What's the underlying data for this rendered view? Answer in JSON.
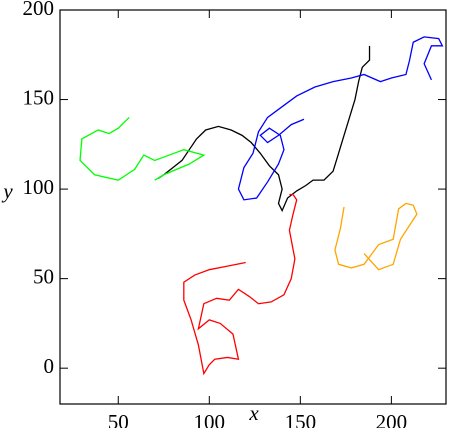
{
  "chart_data": {
    "type": "line",
    "x_label": "x",
    "y_label": "y",
    "xlim": [
      18,
      230
    ],
    "ylim": [
      -20,
      200
    ],
    "xticks": [
      50,
      100,
      150,
      200
    ],
    "yticks": [
      0,
      50,
      100,
      150,
      200
    ],
    "series": [
      {
        "name": "black",
        "color": "#000000",
        "x": [
          188,
          188,
          184,
          182,
          180,
          177,
          174,
          171,
          168,
          163,
          157,
          153,
          148,
          143,
          140,
          138,
          140,
          138,
          133,
          128,
          123,
          118,
          112,
          105,
          98,
          93,
          89,
          85,
          80,
          75,
          72
        ],
        "values": [
          180,
          172,
          168,
          160,
          150,
          140,
          130,
          120,
          110,
          105,
          105,
          102,
          99,
          95,
          88,
          92,
          100,
          108,
          113,
          120,
          126,
          130,
          133,
          135,
          133,
          128,
          122,
          116,
          112,
          108,
          106
        ]
      },
      {
        "name": "blue",
        "color": "#0000ff",
        "x": [
          222,
          218,
          222,
          228,
          226,
          218,
          212,
          210,
          208,
          200,
          194,
          185,
          178,
          168,
          158,
          148,
          140,
          132,
          127,
          124,
          119,
          116,
          119,
          126,
          132,
          138,
          141,
          139,
          133,
          128,
          132,
          138,
          145,
          152
        ],
        "values": [
          161,
          170,
          180,
          180,
          184,
          185,
          182,
          172,
          164,
          162,
          160,
          164,
          162,
          160,
          157,
          152,
          146,
          140,
          132,
          120,
          112,
          100,
          94,
          95,
          104,
          114,
          122,
          130,
          134,
          130,
          126,
          130,
          136,
          139
        ]
      },
      {
        "name": "red",
        "color": "#ff0000",
        "x": [
          120,
          110,
          100,
          92,
          86,
          86,
          90,
          94,
          97,
          100,
          103,
          110,
          116,
          113,
          106,
          100,
          94,
          97,
          104,
          111,
          116,
          122,
          127,
          134,
          141,
          145,
          147,
          144,
          146,
          148,
          146,
          144
        ],
        "values": [
          59,
          57,
          55,
          52,
          48,
          38,
          27,
          13,
          -3,
          2,
          5,
          6,
          5,
          19,
          25,
          27,
          22,
          36,
          39,
          38,
          44,
          40,
          36,
          37,
          41,
          50,
          61,
          77,
          86,
          94,
          97,
          97
        ]
      },
      {
        "name": "green",
        "color": "#00ff00",
        "x": [
          56,
          50,
          45,
          39,
          30,
          29,
          37,
          50,
          59,
          64,
          70,
          78,
          86,
          97,
          89,
          75,
          70
        ],
        "values": [
          140,
          134,
          131,
          133,
          128,
          116,
          108,
          105,
          111,
          119,
          116,
          119,
          122,
          119,
          114,
          108,
          105
        ]
      },
      {
        "name": "orange",
        "color": "#ffa500",
        "x": [
          174,
          172,
          169,
          171,
          178,
          185,
          193,
          201,
          204,
          208,
          212,
          214,
          205,
          201,
          193,
          185
        ],
        "values": [
          90,
          78,
          66,
          58,
          56,
          58,
          69,
          72,
          89,
          92,
          91,
          86,
          72,
          58,
          55,
          64
        ]
      }
    ]
  }
}
